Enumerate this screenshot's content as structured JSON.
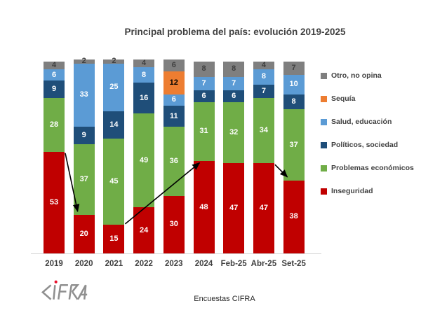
{
  "title": "Principal problema del país: evolución 2019-2025",
  "footer": {
    "note": "Encuestas CIFRA",
    "logo_text": "CIFRA"
  },
  "chart_data": {
    "type": "bar",
    "subtype": "stacked",
    "title": "Principal problema del país: evolución 2019-2025",
    "xlabel": "",
    "ylabel": "",
    "ylim": [
      0,
      101
    ],
    "grid": false,
    "units": "percent",
    "categories": [
      "2019",
      "2020",
      "2021",
      "2022",
      "2023",
      "2024",
      "Feb-25",
      "Abr-25",
      "Set-25"
    ],
    "series": [
      {
        "key": "inseguridad",
        "name": "Inseguridad",
        "color": "#C00000",
        "label_color": "#FFFFFF",
        "values": [
          53,
          20,
          15,
          24,
          30,
          48,
          47,
          47,
          38
        ]
      },
      {
        "key": "problemas-economicos",
        "name": "Problemas económicos",
        "color": "#70AD47",
        "label_color": "#FFFFFF",
        "values": [
          28,
          37,
          45,
          49,
          36,
          31,
          32,
          34,
          37
        ]
      },
      {
        "key": "politicos-sociedad",
        "name": "Políticos, sociedad",
        "color": "#1F4E79",
        "label_color": "#FFFFFF",
        "values": [
          9,
          9,
          14,
          16,
          11,
          6,
          6,
          7,
          8
        ]
      },
      {
        "key": "salud-educacion",
        "name": "Salud, educación",
        "color": "#5B9BD5",
        "label_color": "#FFFFFF",
        "values": [
          6,
          33,
          25,
          8,
          6,
          7,
          7,
          8,
          10
        ]
      },
      {
        "key": "sequia",
        "name": "Sequía",
        "color": "#ED7D31",
        "label_color": "#000000",
        "values": [
          0,
          0,
          0,
          0,
          12,
          0,
          0,
          0,
          0
        ]
      },
      {
        "key": "otro-no-opina",
        "name": "Otro, no opina",
        "color": "#7F7F7F",
        "label_color": "#3F3F3F",
        "values": [
          4,
          2,
          2,
          4,
          6,
          8,
          8,
          4,
          7
        ]
      }
    ],
    "legend": {
      "position": "right",
      "order_top_to_bottom": [
        "Otro, no opina",
        "Sequía",
        "Salud, educación",
        "Políticos, sociedad",
        "Problemas económicos",
        "Inseguridad"
      ]
    },
    "annotations": [
      {
        "type": "arrow",
        "series": "Inseguridad",
        "from": "2019",
        "to": "2020"
      },
      {
        "type": "arrow",
        "series": "Inseguridad",
        "from": "2021",
        "to": "2024"
      },
      {
        "type": "arrow",
        "series": "Inseguridad",
        "from": "Abr-25",
        "to": "Set-25"
      }
    ]
  }
}
